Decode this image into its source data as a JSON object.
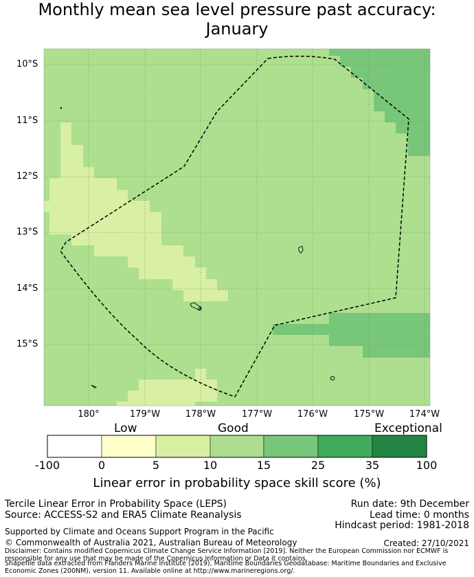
{
  "title_line1": "Monthly mean sea level pressure past accuracy:",
  "title_line2": "January",
  "map": {
    "lat_labels": [
      "10°S",
      "11°S",
      "12°S",
      "13°S",
      "14°S",
      "15°S"
    ],
    "lon_labels": [
      "180°",
      "179°W",
      "178°W",
      "177°W",
      "176°W",
      "175°W",
      "174°W"
    ],
    "boundary_style": "dashed",
    "colors": {
      "good_light": "#d8efa4",
      "good": "#addf8e",
      "very_good": "#78c679",
      "grid": "#7f9a6a",
      "boundary": "#000000"
    }
  },
  "colorbar": {
    "category_low": "Low",
    "category_good": "Good",
    "category_exceptional": "Exceptional",
    "ticks": [
      "-100",
      "0",
      "5",
      "10",
      "15",
      "25",
      "35",
      "100"
    ],
    "segment_colors": [
      "#ffffff",
      "#ffffcc",
      "#d9f0a3",
      "#addd8e",
      "#78c679",
      "#41ab5d",
      "#238443"
    ],
    "label": "Linear error in probability space skill score (%)"
  },
  "info": {
    "method": "Tercile Linear Error in Probability Space (LEPS)",
    "source": "Source: ACCESS-S2 and ERA5 Climate Reanalysis",
    "run_date": "Run date: 9th December",
    "lead_time": "Lead time: 0 months",
    "hindcast": "Hindcast period: 1981-2018",
    "supported": "Supported by Climate and Oceans Support Program in the Pacific",
    "copyright": "© Commonwealth of Australia 2021, Australian Bureau of Meteorology",
    "created": "Created: 27/10/2021",
    "disclaimer": "Disclaimer: Contains modified Copernicus Climate Change Service Information [2019]. Neither the European Commission nor ECMWF is responsible for any use that may be made of the Copernicus Information or Data it contains.",
    "shapefile": "Shapefile data extracted from Flanders Marine Institute (2019), Maritime Boundaries Geodatabase: Maritime Boundaries and Exclusive Economic Zones (200NM), version 11. Available online at http://www.marineregions.org/."
  }
}
